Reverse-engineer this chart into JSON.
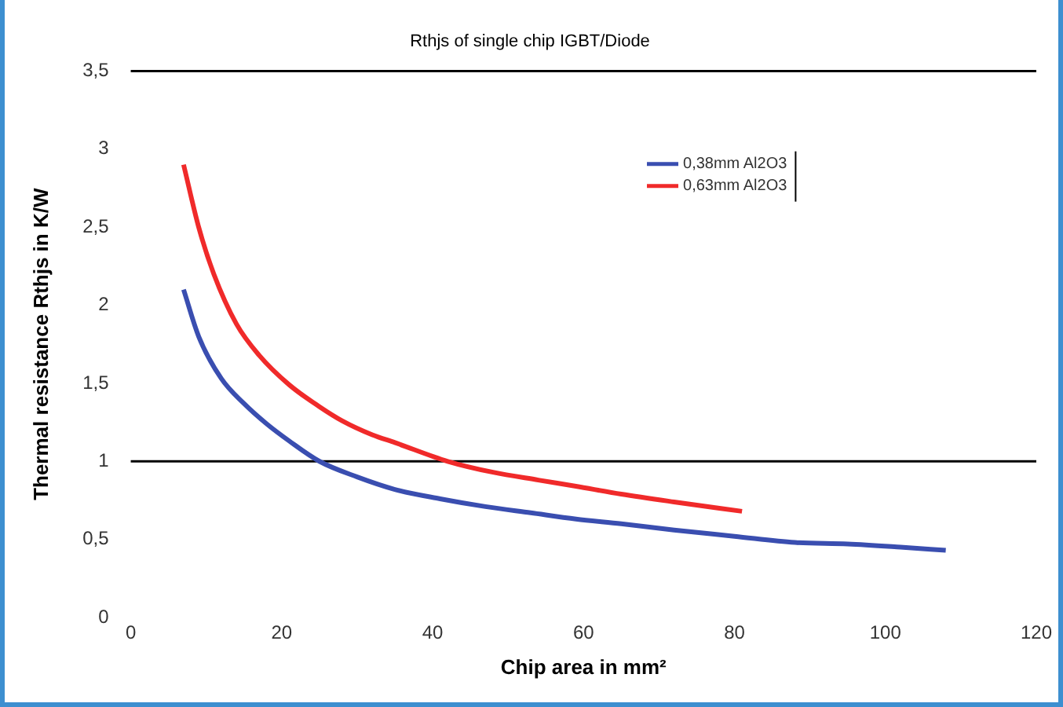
{
  "chart_data": {
    "type": "line",
    "title": "Rthjs of single chip IGBT/Diode",
    "xlabel": "Chip area in mm²",
    "ylabel": "Thermal resistance Rthjs in K/W",
    "xlim": [
      0,
      120
    ],
    "xticks": [
      0,
      20,
      40,
      60,
      80,
      100,
      120
    ],
    "ylim": [
      0,
      3.5
    ],
    "yticks": [
      {
        "value": 0,
        "label": "0"
      },
      {
        "value": 0.5,
        "label": "0,5"
      },
      {
        "value": 1,
        "label": "1"
      },
      {
        "value": 1.5,
        "label": "1,5"
      },
      {
        "value": 2,
        "label": "2"
      },
      {
        "value": 2.5,
        "label": "2,5"
      },
      {
        "value": 3,
        "label": "3"
      },
      {
        "value": 3.5,
        "label": "3,5"
      }
    ],
    "grid": false,
    "legend": "top right",
    "marker": "none",
    "line_style": "solid",
    "ref_lines": [
      {
        "axis": "y",
        "value": 1,
        "color": "#000000"
      }
    ],
    "series": [
      {
        "name": "0,38mm Al2O3",
        "color": "#3a4eb0",
        "x": [
          7,
          9,
          12,
          15,
          18,
          21,
          25,
          30,
          35,
          41,
          47,
          53,
          59,
          65,
          72,
          80,
          88,
          95,
          102,
          108
        ],
        "values": [
          2.1,
          1.8,
          1.53,
          1.37,
          1.24,
          1.13,
          1.0,
          0.9,
          0.82,
          0.76,
          0.71,
          0.67,
          0.63,
          0.6,
          0.56,
          0.52,
          0.48,
          0.47,
          0.45,
          0.43
        ]
      },
      {
        "name": "0,63mm Al2O3",
        "color": "#f02a2a",
        "x": [
          7,
          9,
          11,
          14,
          17,
          21,
          25,
          28,
          32,
          35,
          42,
          48,
          54,
          59,
          65,
          72,
          81
        ],
        "values": [
          2.9,
          2.5,
          2.2,
          1.88,
          1.68,
          1.49,
          1.35,
          1.26,
          1.17,
          1.12,
          1.0,
          0.93,
          0.88,
          0.84,
          0.79,
          0.74,
          0.68
        ]
      }
    ]
  }
}
